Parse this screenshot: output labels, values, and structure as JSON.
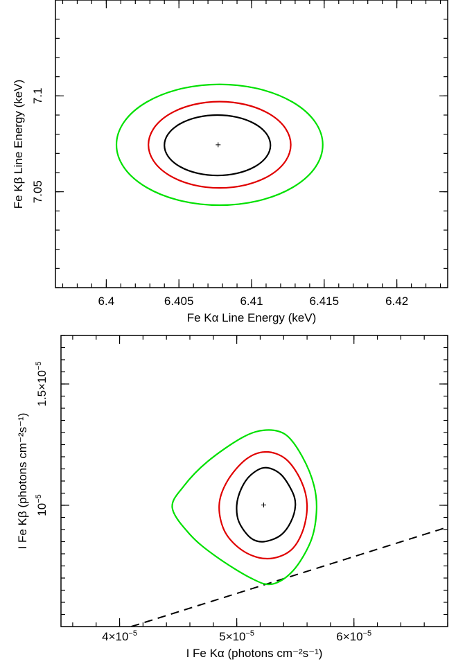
{
  "colors": {
    "1sigma": "#000000",
    "2sigma": "#e00000",
    "3sigma": "#00e000",
    "axes": "#000000"
  },
  "chart_data": [
    {
      "type": "contour",
      "xlabel": "Fe Kα Line Energy (keV)",
      "ylabel": "Fe Kβ Line Energy (keV)",
      "xlim": [
        6.3965,
        6.4235
      ],
      "ylim": [
        7.0,
        7.15
      ],
      "xticks": [
        6.4,
        6.405,
        6.41,
        6.415,
        6.42
      ],
      "xtick_labels": [
        "6.4",
        "6.405",
        "6.41",
        "6.415",
        "6.42"
      ],
      "yticks": [
        7.05,
        7.1
      ],
      "ytick_labels": [
        "7.05",
        "7.1"
      ],
      "best_fit": {
        "x": 6.4077,
        "y": 7.0745
      },
      "contours": [
        {
          "level": "1sigma",
          "color": "#000000",
          "x_range": [
            6.404,
            6.4113
          ],
          "y_range": [
            7.0585,
            7.09
          ]
        },
        {
          "level": "2sigma",
          "color": "#e00000",
          "x_range": [
            6.4029,
            6.4127
          ],
          "y_range": [
            7.052,
            7.097
          ]
        },
        {
          "level": "3sigma",
          "color": "#00e000",
          "x_range": [
            6.4007,
            6.4149
          ],
          "y_range": [
            7.043,
            7.106
          ]
        }
      ]
    },
    {
      "type": "contour",
      "xlabel": "I Fe Kα (photons cm⁻²s⁻¹)",
      "ylabel": "I Fe Kβ (photons cm⁻²s⁻¹)",
      "xlim": [
        3.5e-05,
        6.8e-05
      ],
      "ylim": [
        5e-06,
        1.7e-05
      ],
      "xticks": [
        4e-05,
        5e-05,
        6e-05
      ],
      "xtick_labels": [
        {
          "base": "4×10",
          "exp": "−5"
        },
        {
          "base": "5×10",
          "exp": "−5"
        },
        {
          "base": "6×10",
          "exp": "−5"
        }
      ],
      "yticks": [
        1e-05,
        1.5e-05
      ],
      "ytick_labels": [
        {
          "base": "10",
          "exp": "−5"
        },
        {
          "base": "1.5×10",
          "exp": "−5"
        }
      ],
      "best_fit": {
        "x": 5.23e-05,
        "y": 1.001e-05
      },
      "contours": [
        {
          "level": "1sigma",
          "color": "#000000",
          "points": [
            [
              5.24e-05,
              1.155e-05
            ],
            [
              5.37e-05,
              1.13e-05
            ],
            [
              5.47e-05,
              1.06e-05
            ],
            [
              5.5e-05,
              1e-05
            ],
            [
              5.46e-05,
              9.3e-06
            ],
            [
              5.37e-05,
              8.75e-06
            ],
            [
              5.23e-05,
              8.5e-06
            ],
            [
              5.12e-05,
              8.65e-06
            ],
            [
              5.02e-05,
              9.3e-06
            ],
            [
              5e-05,
              1e-05
            ],
            [
              5.04e-05,
              1.07e-05
            ],
            [
              5.12e-05,
              1.125e-05
            ]
          ]
        },
        {
          "level": "2sigma",
          "color": "#e00000",
          "points": [
            [
              5.25e-05,
              1.22e-05
            ],
            [
              5.42e-05,
              1.19e-05
            ],
            [
              5.55e-05,
              1.1e-05
            ],
            [
              5.6e-05,
              1e-05
            ],
            [
              5.56e-05,
              8.9e-06
            ],
            [
              5.45e-05,
              8.1e-06
            ],
            [
              5.26e-05,
              7.8e-06
            ],
            [
              5.06e-05,
              8.1e-06
            ],
            [
              4.9e-05,
              8.9e-06
            ],
            [
              4.85e-05,
              1e-05
            ],
            [
              4.92e-05,
              1.1e-05
            ],
            [
              5.08e-05,
              1.19e-05
            ]
          ]
        },
        {
          "level": "3sigma",
          "color": "#00e000",
          "points": [
            [
              5.25e-05,
              1.31e-05
            ],
            [
              5.42e-05,
              1.29e-05
            ],
            [
              5.56e-05,
              1.2e-05
            ],
            [
              5.66e-05,
              1.08e-05
            ],
            [
              5.68e-05,
              9.7e-06
            ],
            [
              5.63e-05,
              8.5e-06
            ],
            [
              5.48e-05,
              7.3e-06
            ],
            [
              5.3e-05,
              6.75e-06
            ],
            [
              5.12e-05,
              7e-06
            ],
            [
              4.82e-05,
              7.9e-06
            ],
            [
              4.6e-05,
              8.8e-06
            ],
            [
              4.45e-05,
              9.9e-06
            ],
            [
              4.55e-05,
              1.08e-05
            ],
            [
              4.75e-05,
              1.18e-05
            ],
            [
              5.05e-05,
              1.28e-05
            ]
          ]
        }
      ],
      "dashed_line": {
        "points": [
          [
            4.1e-05,
            5e-06
          ],
          [
            6.8e-05,
            9.1e-06
          ]
        ]
      }
    }
  ]
}
